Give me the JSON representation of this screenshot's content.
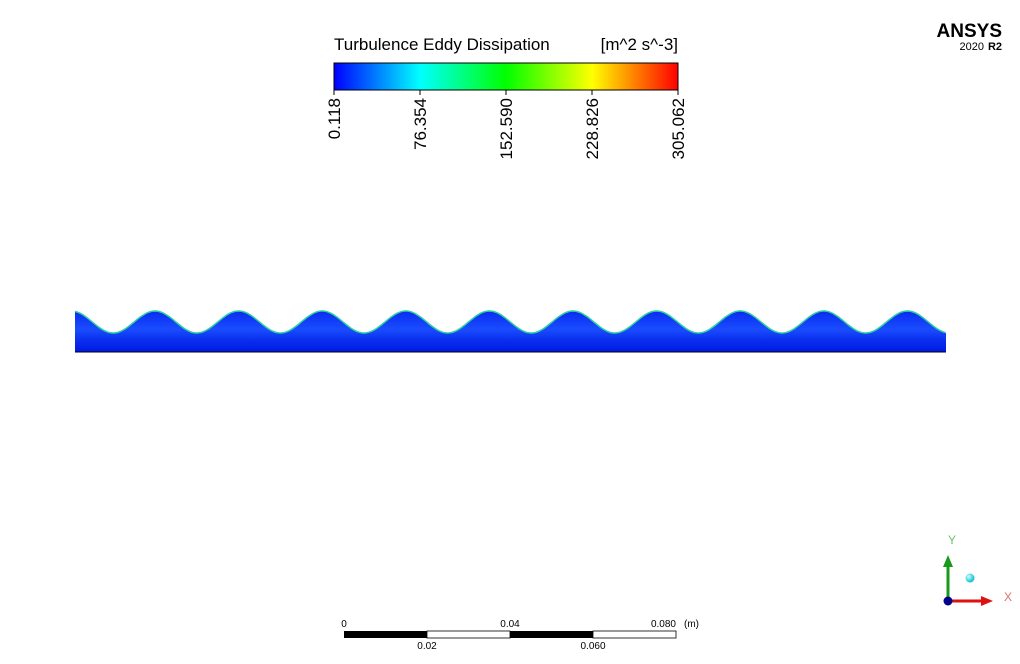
{
  "logo": {
    "brand": "ANSYS",
    "version": "2020",
    "release": "R2"
  },
  "legend": {
    "title": "Turbulence Eddy Dissipation",
    "unit": "[m^2 s^-3]",
    "ticks": [
      "0.118",
      "76.354",
      "152.590",
      "228.826",
      "305.062"
    ]
  },
  "scale_bar": {
    "top_labels": [
      "0",
      "0.04",
      "0.080"
    ],
    "unit": "(m)",
    "bottom_labels": [
      "0.02",
      "0.060"
    ]
  },
  "triad": {
    "y": "Y",
    "x": "X"
  }
}
